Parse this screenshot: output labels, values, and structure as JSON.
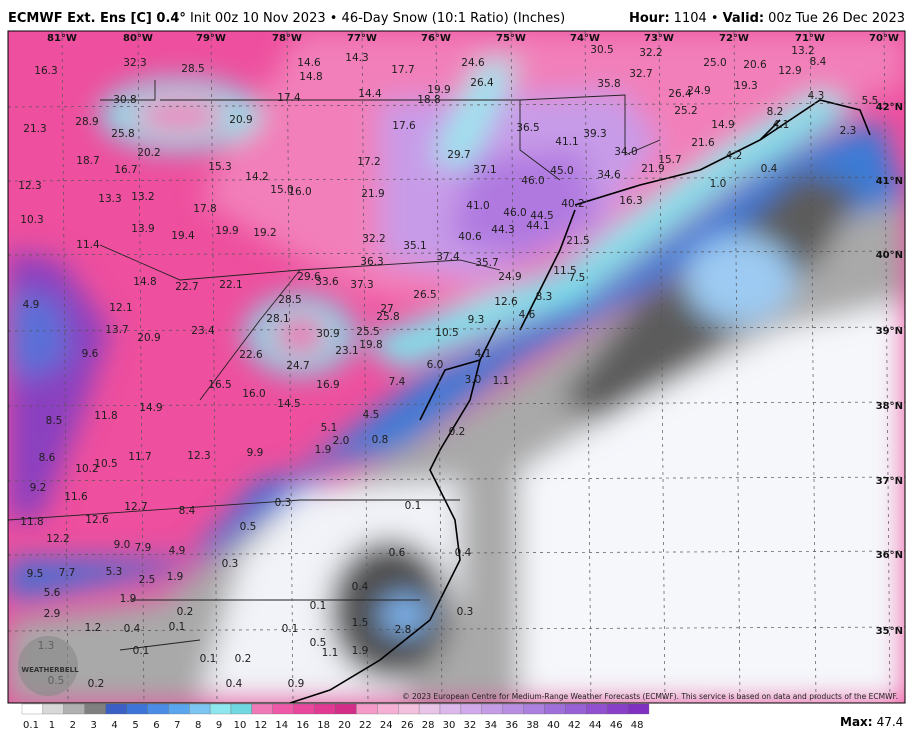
{
  "header": {
    "model": "ECMWF Ext. Ens [C] 0.4°",
    "description": "Init 00z 10 Nov 2023 • 46-Day Snow (10:1 Ratio) (Inches)",
    "hour_label": "Hour:",
    "hour": "1104 •",
    "valid_label": "Valid:",
    "valid": "00z Tue 26 Dec 2023"
  },
  "map": {
    "longitudes": [
      "81°W",
      "80°W",
      "79°W",
      "78°W",
      "77°W",
      "76°W",
      "75°W",
      "74°W",
      "73°W",
      "72°W",
      "71°W",
      "70°W"
    ],
    "latitudes": [
      "42°N",
      "41°N",
      "40°N",
      "39°N",
      "38°N",
      "37°N",
      "36°N",
      "35°N"
    ],
    "values": [
      "16.3",
      "32.3",
      "28.5",
      "14.6",
      "14.8",
      "14.3",
      "17.7",
      "24.6",
      "30.5",
      "32.2",
      "25.0",
      "20.6",
      "13.2",
      "12.9",
      "8.4",
      "30.8",
      "17.4",
      "14.4",
      "18.8",
      "19.9",
      "26.4",
      "35.8",
      "32.7",
      "26.4",
      "24.9",
      "19.3",
      "4.3",
      "5.5",
      "21.3",
      "28.9",
      "25.8",
      "20.9",
      "17.6",
      "36.5",
      "41.1",
      "39.3",
      "25.2",
      "14.9",
      "8.2",
      "4.1",
      "18.7",
      "20.2",
      "16.7",
      "15.3",
      "14.2",
      "15.0",
      "16.0",
      "17.2",
      "29.7",
      "37.1",
      "34.0",
      "21.6",
      "15.7",
      "21.9",
      "4.2",
      "2.3",
      "12.3",
      "13.3",
      "13.2",
      "46.0",
      "45.0",
      "34.6",
      "0.4",
      "17.8",
      "21.9",
      "41.0",
      "46.0",
      "44.5",
      "44.1",
      "40.2",
      "16.3",
      "1.0",
      "10.3",
      "13.9",
      "19.4",
      "19.9",
      "19.2",
      "32.2",
      "35.1",
      "40.6",
      "44.3",
      "21.5",
      "11.4",
      "37.4",
      "36.3",
      "35.7",
      "14.8",
      "22.7",
      "22.1",
      "29.6",
      "33.6",
      "37.3",
      "24.9",
      "11.5",
      "7.5",
      "4.9",
      "12.1",
      "28.5",
      "26.5",
      "27",
      "25.8",
      "12.6",
      "8.3",
      "13.7",
      "20.9",
      "23.4",
      "28.1",
      "30.9",
      "25.5",
      "19.8",
      "10.5",
      "9.3",
      "4.6",
      "9.6",
      "22.6",
      "23.1",
      "24.7",
      "6.0",
      "4.1",
      "7.4",
      "3.0",
      "1.1",
      "16.5",
      "16.0",
      "16.9",
      "11.8",
      "14.9",
      "14.5",
      "4.5",
      "8.5",
      "5.1",
      "2.0",
      "0.8",
      "0.2",
      "8.6",
      "10.2",
      "10.5",
      "11.7",
      "12.3",
      "9.9",
      "1.9",
      "9.2",
      "11.6",
      "12.7",
      "8.4",
      "0.3",
      "0.1",
      "11.8",
      "12.6",
      "0.5",
      "12.2",
      "9.0",
      "7.9",
      "4.9",
      "0.3",
      "0.6",
      "0.4",
      "9.5",
      "7.7",
      "5.3",
      "2.5",
      "1.9",
      "0.4",
      "5.6",
      "1.9",
      "0.4",
      "0.2",
      "0.3",
      "2.9",
      "1.2",
      "0.1",
      "0.1",
      "1.5",
      "1.3",
      "0.1",
      "0.1",
      "0.5",
      "2.8",
      "0.5",
      "0.2",
      "0.1",
      "0.2",
      "1.1",
      "1.9",
      "0.4",
      "0.9"
    ],
    "logo": "WEATHERBELL",
    "copyright": "© 2023 European Centre for Medium-Range Weather Forecasts (ECMWF). This service is based on data and products of the ECMWF."
  },
  "legend": {
    "labels": [
      "0.1",
      "1",
      "2",
      "3",
      "4",
      "5",
      "6",
      "7",
      "8",
      "9",
      "10",
      "12",
      "14",
      "16",
      "18",
      "20",
      "22",
      "24",
      "26",
      "28",
      "30",
      "32",
      "34",
      "36",
      "38",
      "40",
      "42",
      "44",
      "46",
      "48"
    ],
    "max_label": "Max:",
    "max": "47.4"
  }
}
